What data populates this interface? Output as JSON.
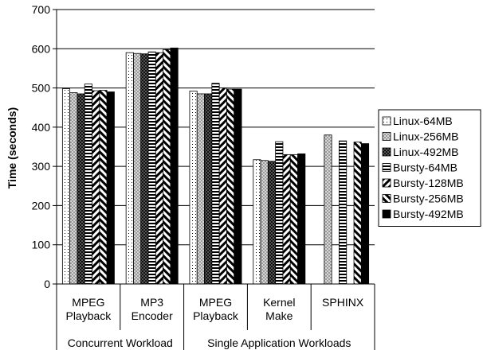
{
  "chart_data": {
    "type": "bar",
    "ylabel": "Time (seconds)",
    "xlabel": "",
    "ylim": [
      0,
      700
    ],
    "yticks": [
      0,
      100,
      200,
      300,
      400,
      500,
      600,
      700
    ],
    "grid": true,
    "legend_position": "right",
    "categories": [
      {
        "label": "MPEG\nPlayback",
        "lines": [
          "MPEG",
          "Playback"
        ]
      },
      {
        "label": "MP3\nEncoder",
        "lines": [
          "MP3",
          "Encoder"
        ]
      },
      {
        "label": "MPEG\nPlayback",
        "lines": [
          "MPEG",
          "Playback"
        ]
      },
      {
        "label": "Kernel\nMake",
        "lines": [
          "Kernel",
          "Make"
        ]
      },
      {
        "label": "SPHINX",
        "lines": [
          "SPHINX"
        ]
      }
    ],
    "category_groups": [
      {
        "label": "Concurrent Workload",
        "categories": [
          0,
          1
        ]
      },
      {
        "label": "Single Application Workloads",
        "categories": [
          2,
          3,
          4
        ]
      }
    ],
    "series": [
      {
        "name": "Linux-64MB",
        "pattern": "dots",
        "values": [
          498,
          590,
          492,
          317,
          null
        ]
      },
      {
        "name": "Linux-256MB",
        "pattern": "checker-gray",
        "values": [
          488,
          588,
          485,
          315,
          380
        ]
      },
      {
        "name": "Linux-492MB",
        "pattern": "checker-dark",
        "values": [
          485,
          587,
          485,
          313,
          null
        ]
      },
      {
        "name": "Bursty-64MB",
        "pattern": "horizontal",
        "values": [
          510,
          592,
          512,
          363,
          365
        ]
      },
      {
        "name": "Bursty-128MB",
        "pattern": "diag-fwd",
        "values": [
          493,
          590,
          500,
          330,
          null
        ]
      },
      {
        "name": "Bursty-256MB",
        "pattern": "diag-back",
        "values": [
          494,
          598,
          497,
          330,
          362
        ]
      },
      {
        "name": "Bursty-492MB",
        "pattern": "solid",
        "values": [
          490,
          602,
          497,
          332,
          358
        ]
      }
    ]
  }
}
